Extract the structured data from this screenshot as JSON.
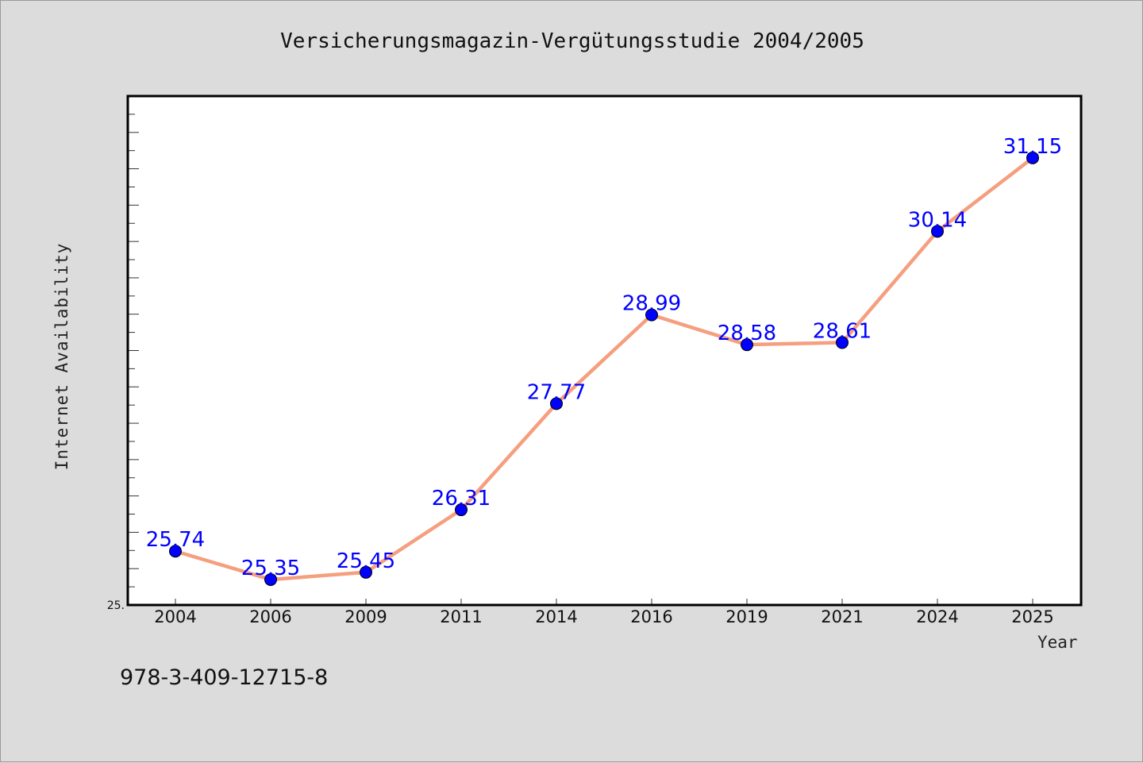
{
  "title": "Versicherungsmagazin-Vergütungsstudie 2004/2005",
  "footer_text": "978-3-409-12715-8",
  "colors": {
    "line": "#f59f7f",
    "marker": "#0000ff",
    "label": "#0000ff",
    "background": "#dcdcdc",
    "plot_background": "#ffffff"
  },
  "chart_data": {
    "type": "line",
    "title": "Versicherungsmagazin-Vergütungsstudie 2004/2005",
    "xlabel": "Year",
    "ylabel": "Internet Availability",
    "categories": [
      "2004",
      "2006",
      "2009",
      "2011",
      "2014",
      "2016",
      "2019",
      "2021",
      "2024",
      "2025"
    ],
    "series": [
      {
        "values": [
          25.74,
          25.35,
          25.45,
          26.31,
          27.77,
          28.99,
          28.58,
          28.61,
          30.14,
          31.15
        ],
        "data_labels": [
          "25.74",
          "25.35",
          "25.45",
          "26.31",
          "27.77",
          "28.99",
          "28.58",
          "28.61",
          "30.14",
          "31.15"
        ]
      }
    ],
    "ylim": [
      25,
      32
    ],
    "y_tick_labels": [
      "25."
    ],
    "grid": false,
    "legend": "none"
  }
}
